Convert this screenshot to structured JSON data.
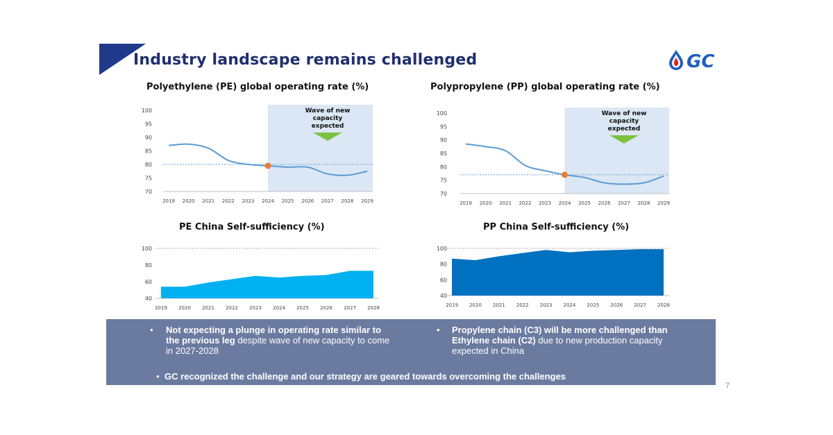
{
  "header": {
    "title": "Industry landscape remains challenged",
    "logo_text": "GC",
    "accent_color": "#1f2f6e",
    "corner_color": "#1f3a8a"
  },
  "chart_data": [
    {
      "id": "pe_operating",
      "type": "line",
      "title": "Polyethylene (PE) global operating rate (%)",
      "x": [
        2019,
        2020,
        2021,
        2022,
        2023,
        2024,
        2025,
        2026,
        2027,
        2028,
        2029
      ],
      "values": [
        87,
        87.5,
        86,
        81.5,
        80,
        79.5,
        79,
        79,
        76.5,
        76,
        77.5
      ],
      "ylim": [
        70,
        100
      ],
      "yticks": [
        70,
        75,
        80,
        85,
        90,
        95,
        100
      ],
      "reference_line": 80,
      "highlight_point": {
        "x": 2024,
        "y": 79.5
      },
      "shaded_from": 2024,
      "annotation": "Wave of new capacity expected",
      "line_color": "#5b9bd5",
      "shade_color": "#dbe7f4",
      "marker_color": "#ed7d31",
      "arrow_color": "#7cc242"
    },
    {
      "id": "pp_operating",
      "type": "line",
      "title": "Polypropylene (PP) global operating rate (%)",
      "x": [
        2019,
        2020,
        2021,
        2022,
        2023,
        2024,
        2025,
        2026,
        2027,
        2028,
        2029
      ],
      "values": [
        88.5,
        87.5,
        86,
        80.5,
        78.5,
        77,
        76,
        74,
        73.5,
        74,
        76.5
      ],
      "ylim": [
        70,
        100
      ],
      "yticks": [
        70,
        75,
        80,
        85,
        90,
        95,
        100
      ],
      "reference_line": 77,
      "highlight_point": {
        "x": 2024,
        "y": 77
      },
      "shaded_from": 2024,
      "annotation": "Wave of new capacity expected",
      "line_color": "#5b9bd5",
      "shade_color": "#dbe7f4",
      "marker_color": "#ed7d31",
      "arrow_color": "#7cc242"
    },
    {
      "id": "pe_china",
      "type": "area",
      "title": "PE China Self-sufficiency (%)",
      "x": [
        2019,
        2020,
        2021,
        2022,
        2023,
        2024,
        2025,
        2026,
        2027,
        2028
      ],
      "values": [
        54,
        54,
        59,
        63,
        67,
        65,
        67,
        68,
        73,
        73
      ],
      "ylim": [
        40,
        100
      ],
      "yticks": [
        40,
        60,
        80,
        100
      ],
      "reference_line": 100,
      "fill_color": "#00b0f0"
    },
    {
      "id": "pp_china",
      "type": "area",
      "title": "PP China Self-sufficiency (%)",
      "x": [
        2019,
        2020,
        2021,
        2022,
        2023,
        2024,
        2025,
        2026,
        2027,
        2028
      ],
      "values": [
        87,
        85,
        90,
        94,
        98,
        95,
        97,
        98,
        99,
        99
      ],
      "ylim": [
        40,
        100
      ],
      "yticks": [
        40,
        60,
        80,
        100
      ],
      "reference_line": 100,
      "fill_color": "#0070c0"
    }
  ],
  "banner": {
    "left_bold": "Not expecting a plunge in operating rate similar to the previous leg",
    "left_rest": " despite wave of new capacity to come in 2027-2028",
    "right_bold": "Propylene chain (C3) will be more challenged than Ethylene chain (C2)",
    "right_rest": " due to new production capacity expected in China",
    "bottom": "GC recognized the challenge and our strategy are geared towards overcoming the challenges",
    "bullet_char": "•"
  },
  "page_number": "7"
}
